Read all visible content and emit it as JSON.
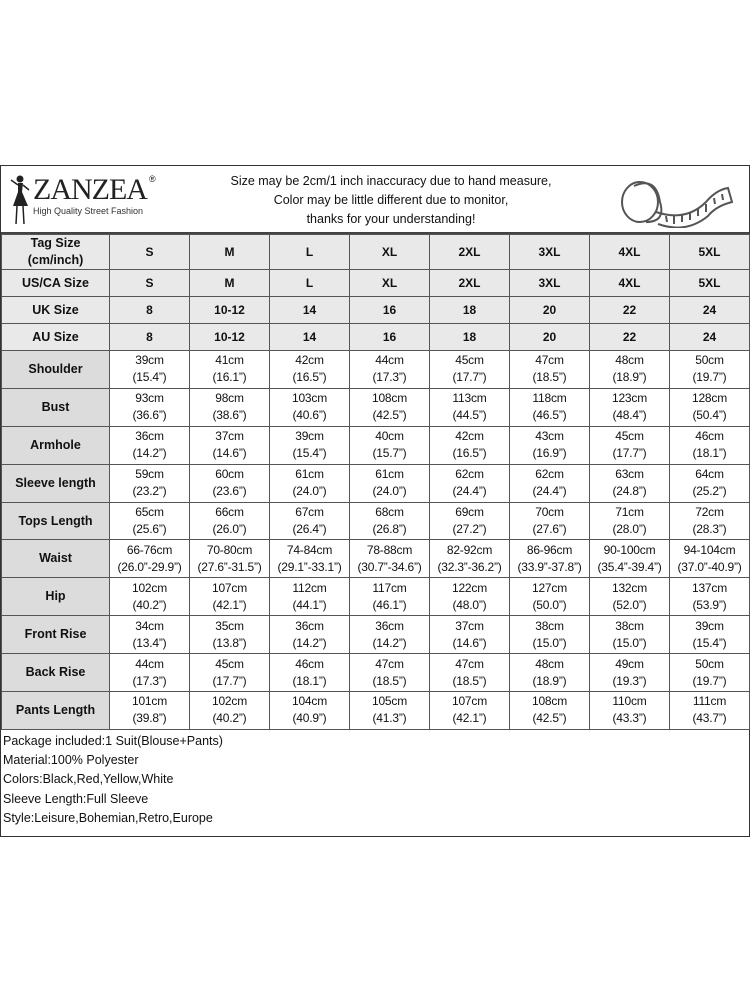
{
  "brand": {
    "name": "ZANZEA",
    "registered": "®",
    "tagline": "High Quality Street Fashion"
  },
  "notice": [
    "Size may be 2cm/1 inch inaccuracy due to hand measure,",
    "Color may be little different due to monitor,",
    "thanks for your understanding!"
  ],
  "icons": {
    "logo": "woman-silhouette-icon",
    "tape": "measuring-tape-icon"
  },
  "size_rows": [
    {
      "label": "Tag Size (cm/inch)",
      "values": [
        "S",
        "M",
        "L",
        "XL",
        "2XL",
        "3XL",
        "4XL",
        "5XL"
      ]
    },
    {
      "label": "US/CA Size",
      "values": [
        "S",
        "M",
        "L",
        "XL",
        "2XL",
        "3XL",
        "4XL",
        "5XL"
      ]
    },
    {
      "label": "UK Size",
      "values": [
        "8",
        "10-12",
        "14",
        "16",
        "18",
        "20",
        "22",
        "24"
      ]
    },
    {
      "label": "AU Size",
      "values": [
        "8",
        "10-12",
        "14",
        "16",
        "18",
        "20",
        "22",
        "24"
      ]
    }
  ],
  "measure_rows": [
    {
      "label": "Shoulder",
      "cm": [
        "39cm",
        "41cm",
        "42cm",
        "44cm",
        "45cm",
        "47cm",
        "48cm",
        "50cm"
      ],
      "inch": [
        "(15.4”)",
        "(16.1”)",
        "(16.5”)",
        "(17.3”)",
        "(17.7”)",
        "(18.5”)",
        "(18.9”)",
        "(19.7”)"
      ]
    },
    {
      "label": "Bust",
      "cm": [
        "93cm",
        "98cm",
        "103cm",
        "108cm",
        "113cm",
        "118cm",
        "123cm",
        "128cm"
      ],
      "inch": [
        "(36.6”)",
        "(38.6”)",
        "(40.6”)",
        "(42.5”)",
        "(44.5”)",
        "(46.5”)",
        "(48.4”)",
        "(50.4”)"
      ]
    },
    {
      "label": "Armhole",
      "cm": [
        "36cm",
        "37cm",
        "39cm",
        "40cm",
        "42cm",
        "43cm",
        "45cm",
        "46cm"
      ],
      "inch": [
        "(14.2”)",
        "(14.6”)",
        "(15.4”)",
        "(15.7”)",
        "(16.5”)",
        "(16.9”)",
        "(17.7”)",
        "(18.1”)"
      ]
    },
    {
      "label": "Sleeve length",
      "cm": [
        "59cm",
        "60cm",
        "61cm",
        "61cm",
        "62cm",
        "62cm",
        "63cm",
        "64cm"
      ],
      "inch": [
        "(23.2”)",
        "(23.6”)",
        "(24.0”)",
        "(24.0”)",
        "(24.4”)",
        "(24.4”)",
        "(24.8”)",
        "(25.2”)"
      ]
    },
    {
      "label": "Tops Length",
      "cm": [
        "65cm",
        "66cm",
        "67cm",
        "68cm",
        "69cm",
        "70cm",
        "71cm",
        "72cm"
      ],
      "inch": [
        "(25.6”)",
        "(26.0”)",
        "(26.4”)",
        "(26.8”)",
        "(27.2”)",
        "(27.6”)",
        "(28.0”)",
        "(28.3”)"
      ]
    },
    {
      "label": "Waist",
      "cm": [
        "66-76cm",
        "70-80cm",
        "74-84cm",
        "78-88cm",
        "82-92cm",
        "86-96cm",
        "90-100cm",
        "94-104cm"
      ],
      "inch": [
        "(26.0”-29.9”)",
        "(27.6”-31.5”)",
        "(29.1”-33.1”)",
        "(30.7”-34.6”)",
        "(32.3”-36.2”)",
        "(33.9”-37.8”)",
        "(35.4”-39.4”)",
        "(37.0”-40.9”)"
      ]
    },
    {
      "label": "Hip",
      "cm": [
        "102cm",
        "107cm",
        "112cm",
        "117cm",
        "122cm",
        "127cm",
        "132cm",
        "137cm"
      ],
      "inch": [
        "(40.2”)",
        "(42.1”)",
        "(44.1”)",
        "(46.1”)",
        "(48.0”)",
        "(50.0”)",
        "(52.0”)",
        "(53.9”)"
      ]
    },
    {
      "label": "Front Rise",
      "cm": [
        "34cm",
        "35cm",
        "36cm",
        "36cm",
        "37cm",
        "38cm",
        "38cm",
        "39cm"
      ],
      "inch": [
        "(13.4”)",
        "(13.8”)",
        "(14.2”)",
        "(14.2”)",
        "(14.6”)",
        "(15.0”)",
        "(15.0”)",
        "(15.4”)"
      ]
    },
    {
      "label": "Back Rise",
      "cm": [
        "44cm",
        "45cm",
        "46cm",
        "47cm",
        "47cm",
        "48cm",
        "49cm",
        "50cm"
      ],
      "inch": [
        "(17.3”)",
        "(17.7”)",
        "(18.1”)",
        "(18.5”)",
        "(18.5”)",
        "(18.9”)",
        "(19.3”)",
        "(19.7”)"
      ]
    },
    {
      "label": "Pants Length",
      "cm": [
        "101cm",
        "102cm",
        "104cm",
        "105cm",
        "107cm",
        "108cm",
        "110cm",
        "111cm"
      ],
      "inch": [
        "(39.8”)",
        "(40.2”)",
        "(40.9”)",
        "(41.3”)",
        "(42.1”)",
        "(42.5”)",
        "(43.3”)",
        "(43.7”)"
      ]
    }
  ],
  "footer": [
    "Package included:1 Suit(Blouse+Pants)",
    "Material:100% Polyester",
    "Colors:Black,Red,Yellow,White",
    "Sleeve Length:Full Sleeve",
    "Style:Leisure,Bohemian,Retro,Europe"
  ]
}
